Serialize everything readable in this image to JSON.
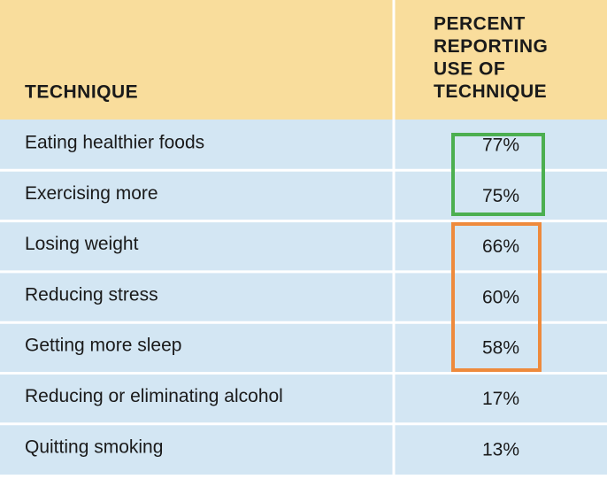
{
  "table": {
    "header": [
      "TECHNIQUE",
      [
        "PERCENT",
        "REPORTING",
        "USE OF",
        "TECHNIQUE"
      ]
    ],
    "rows": [
      [
        "Eating healthier foods",
        "77%"
      ],
      [
        "Exercising more",
        "75%"
      ],
      [
        "Losing weight",
        "66%"
      ],
      [
        "Reducing stress",
        "60%"
      ],
      [
        "Getting more sleep",
        "58%"
      ],
      [
        "Reducing or eliminating alcohol",
        "17%"
      ],
      [
        "Quitting smoking",
        "13%"
      ]
    ]
  }
}
